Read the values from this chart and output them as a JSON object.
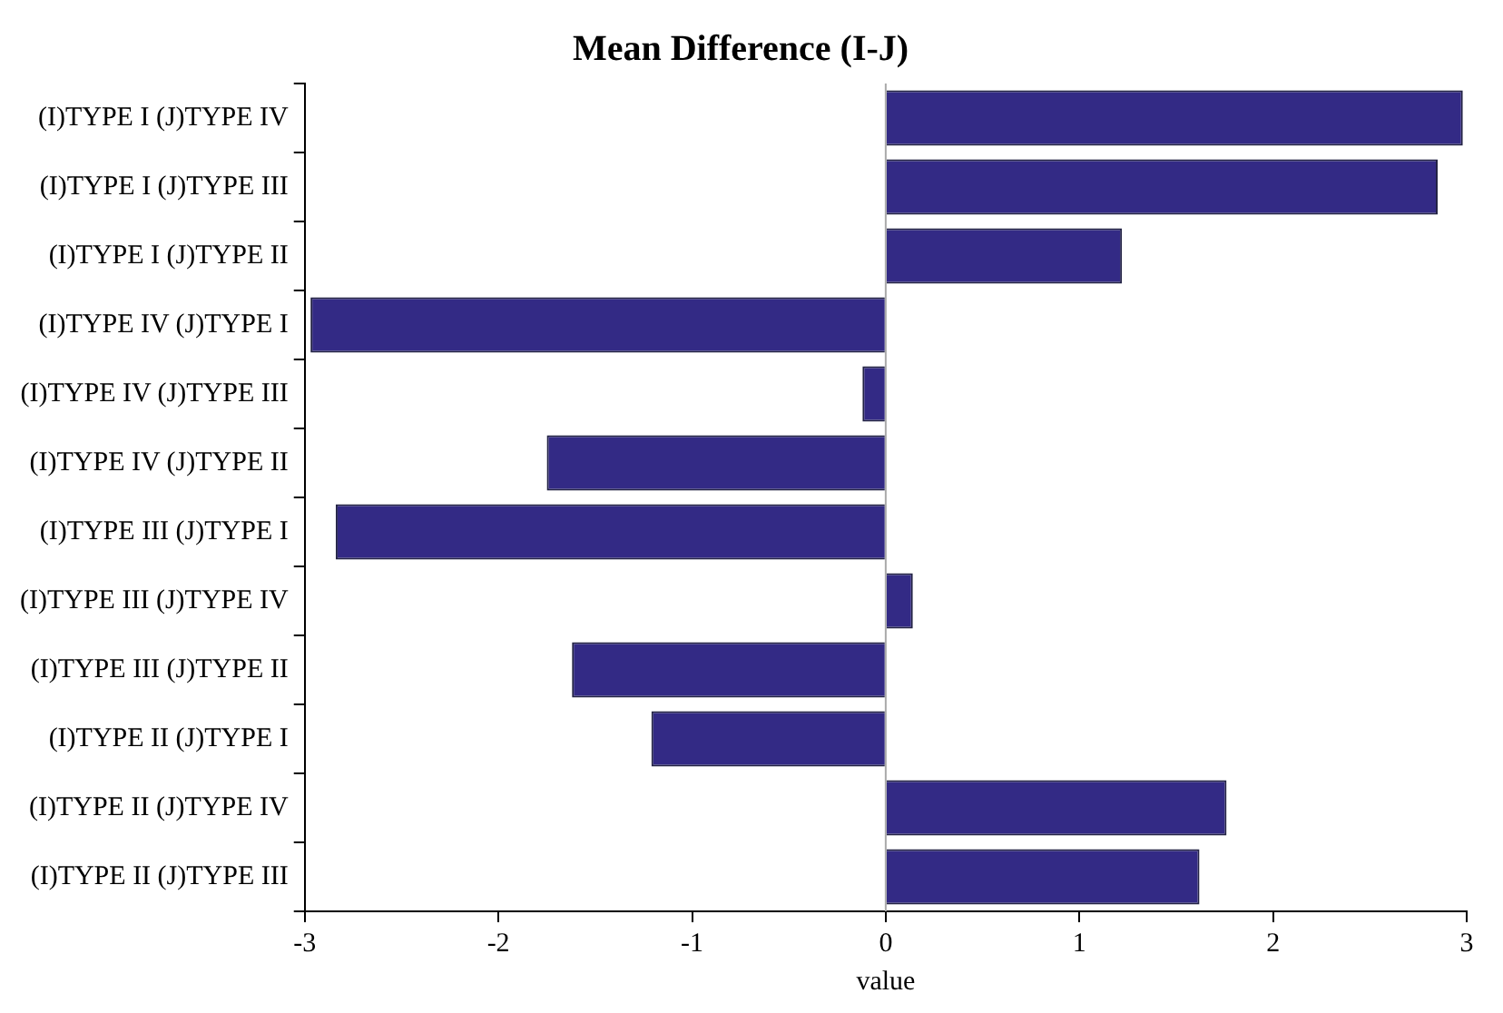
{
  "chart_data": {
    "type": "bar",
    "orientation": "horizontal",
    "title": "Mean Difference (I-J)",
    "xlabel": "value",
    "categories": [
      "(I)TYPE I (J)TYPE IV",
      "(I)TYPE I (J)TYPE III",
      "(I)TYPE I (J)TYPE II",
      "(I)TYPE IV (J)TYPE I",
      "(I)TYPE IV (J)TYPE III",
      "(I)TYPE IV (J)TYPE II",
      "(I)TYPE III (J)TYPE I",
      "(I)TYPE III (J)TYPE IV",
      "(I)TYPE III (J)TYPE II",
      "(I)TYPE II (J)TYPE I",
      "(I)TYPE II (J)TYPE IV",
      "(I)TYPE II (J)TYPE III"
    ],
    "values": [
      2.98,
      2.85,
      1.22,
      -2.97,
      -0.12,
      -1.75,
      -2.84,
      0.14,
      -1.62,
      -1.21,
      1.76,
      1.62
    ],
    "color": "#332a85",
    "xlim": [
      -3,
      3
    ],
    "xticks": [
      -3,
      -2,
      -1,
      0,
      1,
      2,
      3
    ],
    "grid": false,
    "legend": false,
    "ref_lines": [
      {
        "axis": "x",
        "value": 0,
        "color": "#aaaaaa"
      }
    ]
  }
}
